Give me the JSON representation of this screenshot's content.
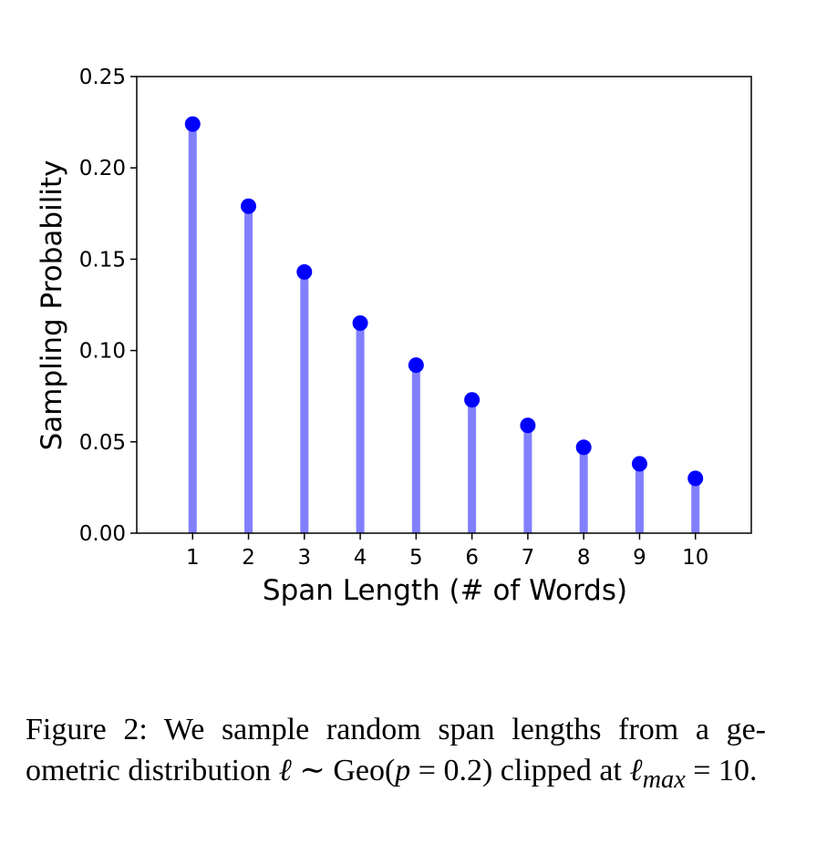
{
  "chart_data": {
    "type": "stem",
    "x": [
      1,
      2,
      3,
      4,
      5,
      6,
      7,
      8,
      9,
      10
    ],
    "values": [
      0.224,
      0.179,
      0.143,
      0.115,
      0.092,
      0.073,
      0.059,
      0.047,
      0.038,
      0.03
    ],
    "xlabel": "Span Length (# of Words)",
    "ylabel": "Sampling Probability",
    "ylim": [
      0,
      0.25
    ],
    "xlim": [
      0,
      11
    ],
    "yticks": [
      "0.00",
      "0.05",
      "0.10",
      "0.15",
      "0.20",
      "0.25"
    ],
    "xticks": [
      "1",
      "2",
      "3",
      "4",
      "5",
      "6",
      "7",
      "8",
      "9",
      "10"
    ],
    "grid": false,
    "colors": {
      "marker": "#0000ff",
      "stem": "#8080ff"
    }
  },
  "caption": {
    "label": "Figure 2:",
    "text_1": "We sample random span lengths from a ge-ometric distribution",
    "dist_var": "ℓ",
    "sim": "∼",
    "dist_name": "Geo(",
    "dist_param": "p",
    "dist_eq": "= 0.2)",
    "text_2": "clipped at",
    "lmax_var": "ℓ",
    "lmax_sub": "max",
    "lmax_eq": "= 10."
  }
}
